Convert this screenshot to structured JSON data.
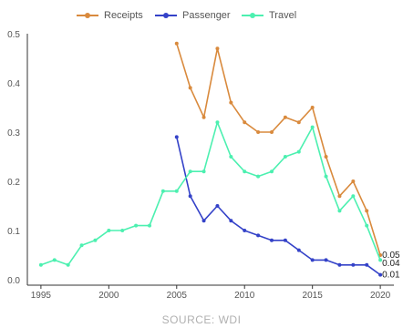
{
  "legend": [
    {
      "label": "Receipts",
      "color": "#d98a3d"
    },
    {
      "label": "Passenger",
      "color": "#3442c8"
    },
    {
      "label": "Travel",
      "color": "#4cf0b0"
    }
  ],
  "source": "SOURCE: WDI",
  "chart_data": {
    "type": "line",
    "title": "",
    "xlabel": "",
    "ylabel": "",
    "xlim": [
      1994,
      2021
    ],
    "ylim": [
      0,
      0.5
    ],
    "x_ticks": [
      1995,
      2000,
      2005,
      2010,
      2015,
      2020
    ],
    "y_ticks": [
      0.0,
      0.1,
      0.2,
      0.3,
      0.4,
      0.5
    ],
    "grid": false,
    "legend_position": "top-center",
    "series": [
      {
        "name": "Receipts",
        "color": "#d98a3d",
        "x": [
          2005,
          2006,
          2007,
          2008,
          2009,
          2010,
          2011,
          2012,
          2013,
          2014,
          2015,
          2016,
          2017,
          2018,
          2019,
          2020
        ],
        "values": [
          0.48,
          0.39,
          0.33,
          0.47,
          0.36,
          0.32,
          0.3,
          0.3,
          0.33,
          0.32,
          0.35,
          0.25,
          0.17,
          0.2,
          0.14,
          0.05
        ],
        "end_label": "0.05"
      },
      {
        "name": "Passenger",
        "color": "#3442c8",
        "x": [
          2005,
          2006,
          2007,
          2008,
          2009,
          2010,
          2011,
          2012,
          2013,
          2014,
          2015,
          2016,
          2017,
          2018,
          2019,
          2020
        ],
        "values": [
          0.29,
          0.17,
          0.12,
          0.15,
          0.12,
          0.1,
          0.09,
          0.08,
          0.08,
          0.06,
          0.04,
          0.04,
          0.03,
          0.03,
          0.03,
          0.01
        ],
        "end_label": "0.01"
      },
      {
        "name": "Travel",
        "color": "#4cf0b0",
        "x": [
          1995,
          1996,
          1997,
          1998,
          1999,
          2000,
          2001,
          2002,
          2003,
          2004,
          2005,
          2006,
          2007,
          2008,
          2009,
          2010,
          2011,
          2012,
          2013,
          2014,
          2015,
          2016,
          2017,
          2018,
          2019,
          2020
        ],
        "values": [
          0.03,
          0.04,
          0.03,
          0.07,
          0.08,
          0.1,
          0.1,
          0.11,
          0.11,
          0.18,
          0.18,
          0.22,
          0.22,
          0.32,
          0.25,
          0.22,
          0.21,
          0.22,
          0.25,
          0.26,
          0.31,
          0.21,
          0.14,
          0.17,
          0.11,
          0.04
        ],
        "end_label": "0.04"
      }
    ]
  }
}
